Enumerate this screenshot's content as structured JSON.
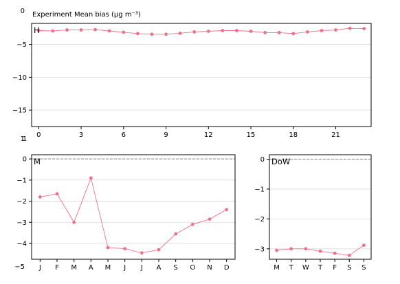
{
  "figure_title": "Experiment Mean bias (μg m⁻³)",
  "colors": {
    "series": "#f07089",
    "grid": "#d9d9d9",
    "zero_line": "#999999",
    "axes": "#000000"
  },
  "chart_data": [
    {
      "type": "line",
      "panel_label": "H",
      "x": [
        0,
        1,
        2,
        3,
        4,
        5,
        6,
        7,
        8,
        9,
        10,
        11,
        12,
        13,
        14,
        15,
        16,
        17,
        18,
        19,
        20,
        21,
        22,
        23
      ],
      "values": [
        -2.9,
        -2.95,
        -2.8,
        -2.8,
        -2.75,
        -2.95,
        -3.15,
        -3.35,
        -3.45,
        -3.45,
        -3.3,
        -3.1,
        -3.0,
        -2.9,
        -2.9,
        -3.0,
        -3.2,
        -3.2,
        -3.35,
        -3.1,
        -2.9,
        -2.8,
        -2.55,
        -2.6
      ],
      "xticks": [
        0,
        3,
        6,
        9,
        12,
        15,
        18,
        21
      ],
      "xtick_labels": [
        "0",
        "3",
        "6",
        "9",
        "12",
        "15",
        "18",
        "21"
      ],
      "xlim": [
        -0.5,
        23.5
      ],
      "yticks": [
        -5,
        -10,
        -15
      ],
      "ytick_labels": [
        "−5",
        "−10",
        "−15"
      ],
      "ylim": [
        -17.5,
        -1.8
      ],
      "zero_line": false,
      "grid": "horizontal"
    },
    {
      "type": "line",
      "panel_label": "M",
      "categories": [
        "J",
        "F",
        "M",
        "A",
        "M",
        "J",
        "J",
        "A",
        "S",
        "O",
        "N",
        "D"
      ],
      "values": [
        -1.8,
        -1.65,
        -3.0,
        -0.9,
        -4.2,
        -4.25,
        -4.45,
        -4.3,
        -3.55,
        -3.1,
        -2.85,
        -2.4
      ],
      "yticks": [
        0,
        -1,
        -2,
        -3,
        -4
      ],
      "ytick_labels": [
        "0",
        "−1",
        "−2",
        "−3",
        "−4"
      ],
      "ylim": [
        -4.75,
        0.2
      ],
      "zero_line": true,
      "grid": "horizontal"
    },
    {
      "type": "line",
      "panel_label": "DoW",
      "categories": [
        "M",
        "T",
        "W",
        "T",
        "F",
        "S",
        "S"
      ],
      "values": [
        -3.05,
        -3.0,
        -3.0,
        -3.08,
        -3.15,
        -3.22,
        -2.88
      ],
      "yticks": [
        0,
        -1,
        -2,
        -3
      ],
      "ytick_labels": [
        "0",
        "−1",
        "−2",
        "−3"
      ],
      "ylim": [
        -3.35,
        0.15
      ],
      "zero_line": true,
      "grid": "horizontal"
    }
  ],
  "background_axis": {
    "yticks": [
      "0",
      "1",
      "−5"
    ],
    "xticks": [
      "1"
    ]
  }
}
